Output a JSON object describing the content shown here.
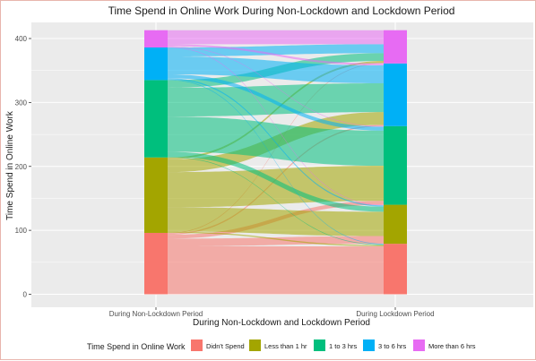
{
  "chart_data": {
    "type": "alluvial",
    "title": "Time Spend in Online Work During Non-Lockdown and Lockdown Period",
    "xlabel": "During Non-Lockdown and Lockdown Period",
    "ylabel": "Time Spend in Online Work",
    "axes": [
      "During Non-Lockdown Period",
      "During Lockdown Period"
    ],
    "ylim": [
      -20,
      420
    ],
    "yticks": [
      0,
      100,
      200,
      300,
      400
    ],
    "categories": [
      "Didn't Spend",
      "Less than 1 hr",
      "1 to 3 hrs",
      "3 to 6 hrs",
      "More than 6 hrs"
    ],
    "colors": {
      "Didn't Spend": "#F8766D",
      "Less than 1 hr": "#A3A500",
      "1 to 3 hrs": "#00BF7D",
      "3 to 6 hrs": "#00B0F6",
      "More than 6 hrs": "#E76BF3"
    },
    "flows": [
      {
        "from": "Didn't Spend",
        "to": "Didn't Spend",
        "value": 75
      },
      {
        "from": "Didn't Spend",
        "to": "Less than 1 hr",
        "value": 12
      },
      {
        "from": "Didn't Spend",
        "to": "1 to 3 hrs",
        "value": 6
      },
      {
        "from": "Didn't Spend",
        "to": "3 to 6 hrs",
        "value": 2
      },
      {
        "from": "Didn't Spend",
        "to": "More than 6 hrs",
        "value": 1
      },
      {
        "from": "Less than 1 hr",
        "to": "Didn't Spend",
        "value": 2
      },
      {
        "from": "Less than 1 hr",
        "to": "Less than 1 hr",
        "value": 38
      },
      {
        "from": "Less than 1 hr",
        "to": "1 to 3 hrs",
        "value": 55
      },
      {
        "from": "Less than 1 hr",
        "to": "3 to 6 hrs",
        "value": 20
      },
      {
        "from": "Less than 1 hr",
        "to": "More than 6 hrs",
        "value": 3
      },
      {
        "from": "1 to 3 hrs",
        "to": "Didn't Spend",
        "value": 1
      },
      {
        "from": "1 to 3 hrs",
        "to": "Less than 1 hr",
        "value": 8
      },
      {
        "from": "1 to 3 hrs",
        "to": "1 to 3 hrs",
        "value": 55
      },
      {
        "from": "1 to 3 hrs",
        "to": "3 to 6 hrs",
        "value": 45
      },
      {
        "from": "1 to 3 hrs",
        "to": "More than 6 hrs",
        "value": 12
      },
      {
        "from": "3 to 6 hrs",
        "to": "Didn't Spend",
        "value": 1
      },
      {
        "from": "3 to 6 hrs",
        "to": "Less than 1 hr",
        "value": 2
      },
      {
        "from": "3 to 6 hrs",
        "to": "1 to 3 hrs",
        "value": 6
      },
      {
        "from": "3 to 6 hrs",
        "to": "3 to 6 hrs",
        "value": 28
      },
      {
        "from": "3 to 6 hrs",
        "to": "More than 6 hrs",
        "value": 14
      },
      {
        "from": "More than 6 hrs",
        "to": "Didn't Spend",
        "value": 0
      },
      {
        "from": "More than 6 hrs",
        "to": "Less than 1 hr",
        "value": 1
      },
      {
        "from": "More than 6 hrs",
        "to": "1 to 3 hrs",
        "value": 1
      },
      {
        "from": "More than 6 hrs",
        "to": "3 to 6 hrs",
        "value": 3
      },
      {
        "from": "More than 6 hrs",
        "to": "More than 6 hrs",
        "value": 22
      }
    ],
    "legend": {
      "title": "Time Spend in Online Work",
      "position": "bottom",
      "entries": [
        "Didn't Spend",
        "Less than 1 hr",
        "1 to 3 hrs",
        "3 to 6 hrs",
        "More than 6 hrs"
      ]
    },
    "grid": true
  }
}
